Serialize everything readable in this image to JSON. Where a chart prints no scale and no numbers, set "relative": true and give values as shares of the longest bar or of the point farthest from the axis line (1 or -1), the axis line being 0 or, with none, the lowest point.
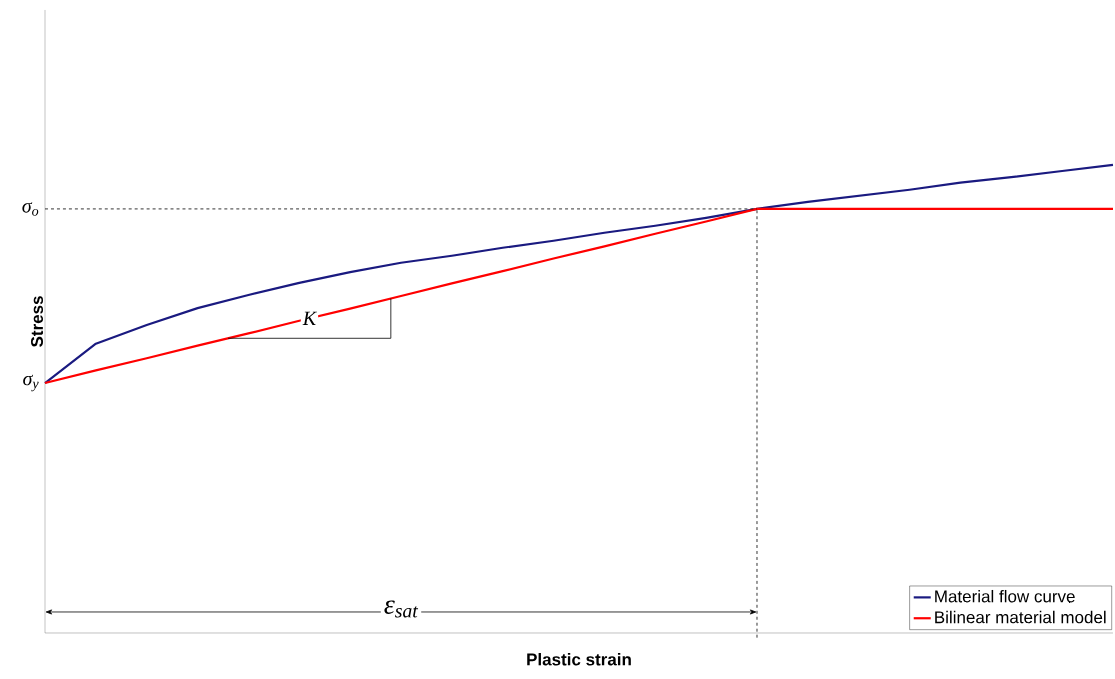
{
  "chart_data": {
    "type": "line",
    "relative": true,
    "xlabel": "Plastic strain",
    "ylabel": "Stress",
    "categories": [
      null,
      null,
      null,
      null,
      null,
      null,
      null,
      null,
      null,
      null,
      null,
      null,
      null,
      null,
      null,
      null,
      null,
      null,
      null,
      null,
      null,
      null
    ],
    "series": [
      {
        "name": "Material flow curve",
        "color": "#1a1a80",
        "values": [
          0.534,
          0.618,
          0.658,
          0.694,
          0.722,
          0.748,
          0.771,
          0.791,
          0.806,
          0.823,
          0.838,
          0.855,
          0.87,
          0.887,
          0.906,
          0.921,
          0.934,
          0.947,
          0.962,
          0.974,
          0.987,
          1
        ]
      },
      {
        "name": "Bilinear material model",
        "color": "#ff0000",
        "values": [
          0.534,
          0.561,
          0.587,
          0.614,
          0.64,
          0.667,
          0.693,
          0.72,
          0.747,
          0.773,
          0.8,
          0.826,
          0.853,
          0.879,
          0.906,
          0.906,
          0.906,
          0.906,
          0.906,
          0.906,
          0.906,
          0.906
        ]
      }
    ],
    "ref_lines": [
      {
        "axis": "y",
        "value": 0.906,
        "label": "σ$_{o}$",
        "line_style": "dashed"
      }
    ],
    "annotations": [
      "σ$_{y}$",
      "K",
      "ε$_{sat}$"
    ],
    "legend": "bottom right",
    "marker": "none",
    "line_style": "solid"
  }
}
